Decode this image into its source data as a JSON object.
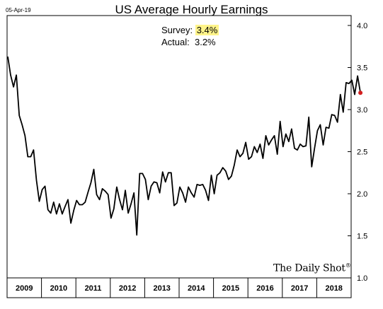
{
  "header": {
    "date": "05-Apr-19",
    "title": "US Average Hourly Earnings"
  },
  "annotations": {
    "survey_label": "Survey:",
    "survey_value": "3.4%",
    "actual_label": "Actual:",
    "actual_value": "3.2%",
    "highlight_color": "#fff48a"
  },
  "source": {
    "name": "The Daily Shot",
    "mark": "®"
  },
  "colors": {
    "line": "#000000",
    "last_point": "#d42020"
  },
  "chart_data": {
    "type": "line",
    "title": "US Average Hourly Earnings",
    "xlabel": "",
    "ylabel": "",
    "x_ticks": [
      "2009",
      "2010",
      "2011",
      "2012",
      "2013",
      "2014",
      "2015",
      "2016",
      "2017",
      "2018"
    ],
    "y_ticks": [
      "1.5",
      "2.0",
      "2.5",
      "3.0",
      "3.5",
      "4.0"
    ],
    "ylim": [
      1.0,
      4.0
    ],
    "xlim": [
      2009.0,
      2019.0
    ],
    "y_axis_side": "right",
    "grid": false,
    "series": [
      {
        "start": "2009-01",
        "frequency": "monthly",
        "values": [
          3.63,
          3.41,
          3.27,
          3.41,
          2.93,
          2.82,
          2.69,
          2.44,
          2.44,
          2.52,
          2.16,
          1.91,
          2.05,
          2.09,
          1.81,
          1.77,
          1.9,
          1.76,
          1.88,
          1.76,
          1.85,
          1.93,
          1.65,
          1.8,
          1.92,
          1.87,
          1.87,
          1.9,
          2.02,
          2.13,
          2.29,
          1.99,
          1.93,
          2.06,
          2.03,
          1.99,
          1.71,
          1.82,
          2.08,
          1.93,
          1.81,
          2.04,
          1.77,
          1.88,
          2.01,
          1.51,
          2.24,
          2.24,
          2.17,
          1.93,
          2.09,
          2.14,
          2.13,
          2.01,
          2.26,
          2.14,
          2.25,
          2.25,
          1.86,
          1.89,
          2.08,
          2.01,
          1.9,
          2.08,
          2.01,
          1.96,
          2.11,
          2.1,
          2.11,
          2.04,
          1.92,
          2.22,
          2.0,
          2.22,
          2.25,
          2.31,
          2.27,
          2.17,
          2.21,
          2.34,
          2.52,
          2.44,
          2.48,
          2.61,
          2.41,
          2.44,
          2.56,
          2.49,
          2.59,
          2.42,
          2.69,
          2.58,
          2.64,
          2.69,
          2.47,
          2.86,
          2.56,
          2.71,
          2.62,
          2.77,
          2.54,
          2.52,
          2.59,
          2.56,
          2.57,
          2.91,
          2.32,
          2.54,
          2.75,
          2.82,
          2.58,
          2.79,
          2.78,
          2.94,
          2.93,
          2.85,
          3.18,
          2.97,
          3.32,
          3.31,
          3.35,
          3.18,
          3.4,
          3.2
        ]
      }
    ]
  }
}
